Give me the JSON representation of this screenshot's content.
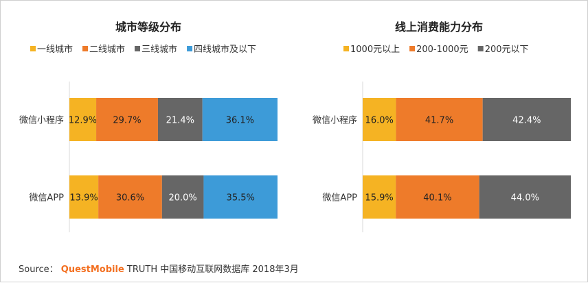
{
  "colors": {
    "yellow": "#f5b323",
    "orange": "#ee7b2a",
    "gray": "#666666",
    "blue": "#3d9bd8",
    "brand": "#f37021"
  },
  "chart_data": [
    {
      "type": "bar",
      "orientation": "horizontal",
      "stacked": "100%",
      "title": "城市等级分布",
      "categories": [
        "微信小程序",
        "微信APP"
      ],
      "series": [
        {
          "name": "一线城市",
          "values": [
            12.9,
            13.9
          ],
          "color": "#f5b323"
        },
        {
          "name": "二线城市",
          "values": [
            29.7,
            30.6
          ],
          "color": "#ee7b2a"
        },
        {
          "name": "三线城市",
          "values": [
            21.4,
            20.0
          ],
          "color": "#666666"
        },
        {
          "name": "四线城市及以下",
          "values": [
            36.1,
            35.5
          ],
          "color": "#3d9bd8"
        }
      ],
      "legend_position": "top",
      "grid": false
    },
    {
      "type": "bar",
      "orientation": "horizontal",
      "stacked": "100%",
      "title": "线上消费能力分布",
      "categories": [
        "微信小程序",
        "微信APP"
      ],
      "series": [
        {
          "name": "1000元以上",
          "values": [
            16.0,
            15.9
          ],
          "color": "#f5b323"
        },
        {
          "name": "200-1000元",
          "values": [
            41.7,
            40.1
          ],
          "color": "#ee7b2a"
        },
        {
          "name": "200元以下",
          "values": [
            42.4,
            44.0
          ],
          "color": "#666666"
        }
      ],
      "legend_position": "top",
      "grid": false
    }
  ],
  "source": {
    "prefix": "Source：",
    "brand": "QuestMobile",
    "text": "TRUTH 中国移动互联网数据库 2018年3月"
  }
}
